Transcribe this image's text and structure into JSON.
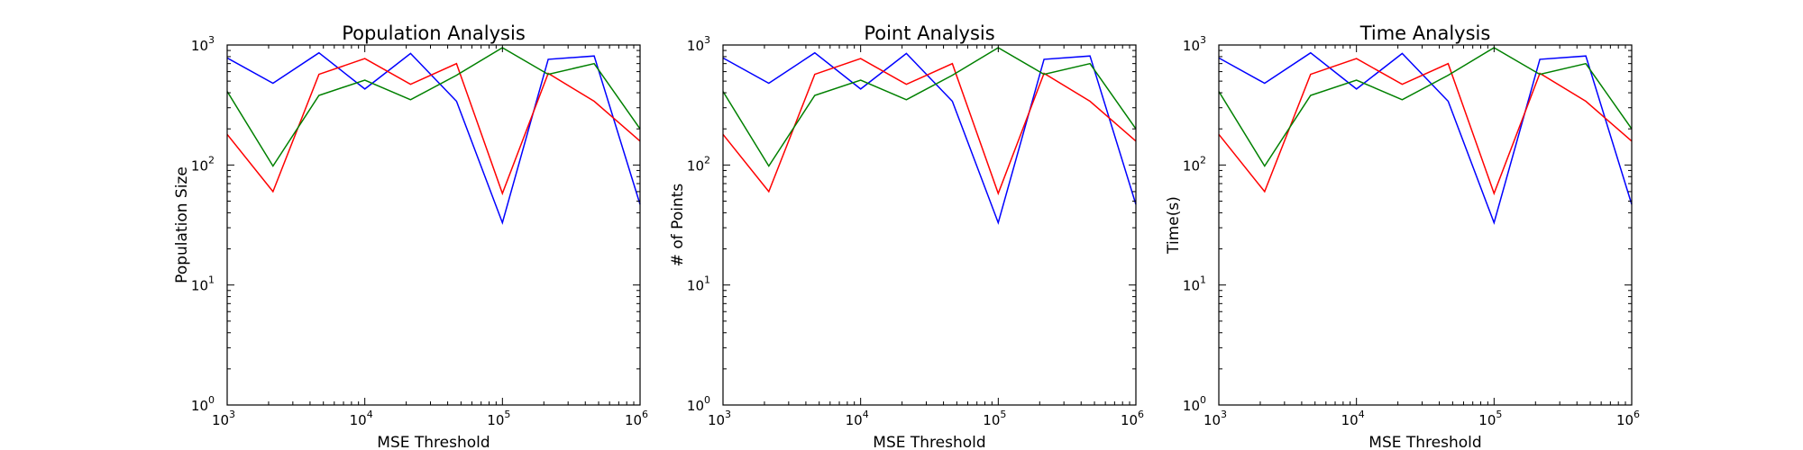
{
  "chart_data": [
    {
      "type": "line",
      "title": "Population Analysis",
      "xlabel": "MSE Threshold",
      "ylabel": "Population Size",
      "xscale": "log",
      "yscale": "log",
      "xlim": [
        1000,
        1000000
      ],
      "ylim": [
        1,
        1000
      ],
      "grid": false,
      "x": [
        1000,
        2150,
        4640,
        10000,
        21500,
        46400,
        100000,
        215000,
        464000,
        1000000
      ],
      "series": [
        {
          "color": "#0000ff",
          "values": [
            780,
            480,
            860,
            430,
            850,
            340,
            33,
            760,
            810,
            47
          ]
        },
        {
          "color": "#ff0000",
          "values": [
            180,
            60,
            570,
            770,
            470,
            700,
            58,
            580,
            340,
            158
          ]
        },
        {
          "color": "#008000",
          "values": [
            410,
            98,
            380,
            510,
            350,
            560,
            950,
            570,
            700,
            200
          ]
        }
      ]
    },
    {
      "type": "line",
      "title": "Point Analysis",
      "xlabel": "MSE Threshold",
      "ylabel": "# of Points",
      "xscale": "log",
      "yscale": "log",
      "xlim": [
        1000,
        1000000
      ],
      "ylim": [
        1,
        1000
      ],
      "grid": false,
      "x": [
        1000,
        2150,
        4640,
        10000,
        21500,
        46400,
        100000,
        215000,
        464000,
        1000000
      ],
      "series": [
        {
          "color": "#0000ff",
          "values": [
            780,
            480,
            860,
            430,
            850,
            340,
            33,
            760,
            810,
            47
          ]
        },
        {
          "color": "#ff0000",
          "values": [
            180,
            60,
            570,
            770,
            470,
            700,
            58,
            580,
            340,
            158
          ]
        },
        {
          "color": "#008000",
          "values": [
            410,
            98,
            380,
            510,
            350,
            560,
            950,
            570,
            700,
            200
          ]
        }
      ]
    },
    {
      "type": "line",
      "title": "Time Analysis",
      "xlabel": "MSE Threshold",
      "ylabel": "Time(s)",
      "xscale": "log",
      "yscale": "log",
      "xlim": [
        1000,
        1000000
      ],
      "ylim": [
        1,
        1000
      ],
      "grid": false,
      "x": [
        1000,
        2150,
        4640,
        10000,
        21500,
        46400,
        100000,
        215000,
        464000,
        1000000
      ],
      "series": [
        {
          "color": "#0000ff",
          "values": [
            780,
            480,
            860,
            430,
            850,
            340,
            33,
            760,
            810,
            47
          ]
        },
        {
          "color": "#ff0000",
          "values": [
            180,
            60,
            570,
            770,
            470,
            700,
            58,
            580,
            340,
            158
          ]
        },
        {
          "color": "#008000",
          "values": [
            410,
            98,
            380,
            510,
            350,
            560,
            950,
            570,
            700,
            200
          ]
        }
      ]
    }
  ],
  "tick_labels": {
    "base": "10",
    "x_exponents": [
      "3",
      "4",
      "5",
      "6"
    ],
    "y_exponents": [
      "0",
      "1",
      "2",
      "3"
    ]
  }
}
